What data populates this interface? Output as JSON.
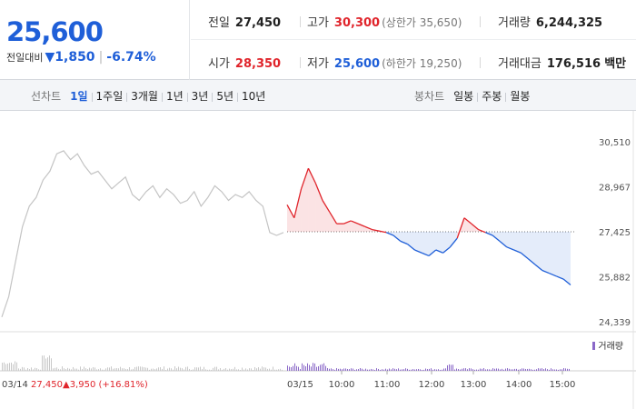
{
  "quote": {
    "price": "25,600",
    "change_label": "전일대비",
    "change_arrow": "▼",
    "change_amount": "1,850",
    "change_pct": "-6.74%"
  },
  "stats": {
    "prev_close": {
      "label": "전일",
      "value": "27,450"
    },
    "high": {
      "label": "고가",
      "value": "30,300",
      "sub": "(상한가 35,650)"
    },
    "volume": {
      "label": "거래량",
      "value": "6,244,325"
    },
    "open": {
      "label": "시가",
      "value": "28,350"
    },
    "low": {
      "label": "저가",
      "value": "25,600",
      "sub": "(하한가 19,250)"
    },
    "turnover": {
      "label": "거래대금",
      "value": "176,516",
      "unit": "백만"
    }
  },
  "line_tabs": {
    "label": "선차트",
    "items": [
      "1일",
      "1주일",
      "3개월",
      "1년",
      "3년",
      "5년",
      "10년"
    ],
    "active": "1일"
  },
  "candle_tabs": {
    "label": "봉차트",
    "items": [
      "일봉",
      "주봉",
      "월봉"
    ]
  },
  "chart_data": {
    "type": "line",
    "y_ticks": [
      "30,510",
      "28,967",
      "27,425",
      "25,882",
      "24,339"
    ],
    "ylim": [
      24339,
      30510
    ],
    "baseline": 27425,
    "prev_day": {
      "date": "03/14",
      "close": "27,450",
      "change": "▲3,950 (+16.81%)",
      "points": [
        24500,
        25200,
        26400,
        27600,
        28300,
        28600,
        29200,
        29500,
        30100,
        30200,
        29900,
        30100,
        29700,
        29400,
        29500,
        29200,
        28900,
        29100,
        29300,
        28700,
        28500,
        28800,
        29000,
        28600,
        28900,
        28700,
        28400,
        28500,
        28800,
        28300,
        28600,
        29000,
        28800,
        28500,
        28700,
        28600,
        28800,
        28500,
        28300,
        27400,
        27300,
        27400
      ]
    },
    "today": {
      "date": "03/15",
      "x_ticks": [
        "10:00",
        "11:00",
        "12:00",
        "13:00",
        "14:00",
        "15:00"
      ],
      "points": [
        28350,
        27900,
        28900,
        29600,
        29100,
        28500,
        28100,
        27700,
        27700,
        27800,
        27700,
        27600,
        27500,
        27450,
        27400,
        27300,
        27100,
        27000,
        26800,
        26700,
        26600,
        26800,
        26700,
        26900,
        27200,
        27900,
        27700,
        27500,
        27400,
        27300,
        27100,
        26900,
        26800,
        26700,
        26500,
        26300,
        26100,
        26000,
        25900,
        25800,
        25600
      ]
    },
    "volume_label": "거래량"
  },
  "colors": {
    "up": "#e0242b",
    "down": "#1f5fd8",
    "prev_line": "#c4c4c4",
    "volume": "#8a68c8"
  }
}
